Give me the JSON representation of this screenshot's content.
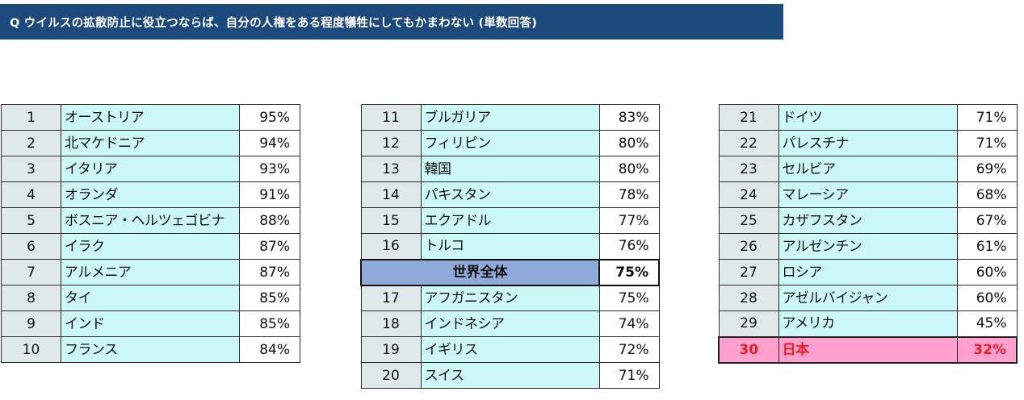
{
  "question": "Q  ウイルスの拡散防止に役立つならば、自分の人権をある程度犠牲にしてもかまわない (単数回答)",
  "colors": {
    "header_bg": "#1d4a7c",
    "rank_cell_bg": "#dfe9ea",
    "country_cell_bg": "#ccf8f8",
    "world_row_bg": "#8eaadb",
    "highlight_row_bg": "#ffa0cf",
    "highlight_text": "#ee1c25"
  },
  "chart_data": {
    "type": "table",
    "title": "Q  ウイルスの拡散防止に役立つならば、自分の人権をある程度犠牲にしてもかまわない (単数回答)",
    "rows": [
      {
        "rank": "1",
        "country": "オーストリア",
        "value": "95%"
      },
      {
        "rank": "2",
        "country": "北マケドニア",
        "value": "94%"
      },
      {
        "rank": "3",
        "country": "イタリア",
        "value": "93%"
      },
      {
        "rank": "4",
        "country": "オランダ",
        "value": "91%"
      },
      {
        "rank": "5",
        "country": "ボスニア・ヘルツェゴビナ",
        "value": "88%"
      },
      {
        "rank": "6",
        "country": "イラク",
        "value": "87%"
      },
      {
        "rank": "7",
        "country": "アルメニア",
        "value": "87%"
      },
      {
        "rank": "8",
        "country": "タイ",
        "value": "85%"
      },
      {
        "rank": "9",
        "country": "インド",
        "value": "85%"
      },
      {
        "rank": "10",
        "country": "フランス",
        "value": "84%"
      },
      {
        "rank": "11",
        "country": "ブルガリア",
        "value": "83%"
      },
      {
        "rank": "12",
        "country": "フィリピン",
        "value": "80%"
      },
      {
        "rank": "13",
        "country": "韓国",
        "value": "80%"
      },
      {
        "rank": "14",
        "country": "パキスタン",
        "value": "78%"
      },
      {
        "rank": "15",
        "country": "エクアドル",
        "value": "77%"
      },
      {
        "rank": "16",
        "country": "トルコ",
        "value": "76%"
      },
      {
        "rank": "",
        "country": "世界全体",
        "value": "75%",
        "world": true
      },
      {
        "rank": "17",
        "country": "アフガニスタン",
        "value": "75%"
      },
      {
        "rank": "18",
        "country": "インドネシア",
        "value": "74%"
      },
      {
        "rank": "19",
        "country": "イギリス",
        "value": "72%"
      },
      {
        "rank": "20",
        "country": "スイス",
        "value": "71%"
      },
      {
        "rank": "21",
        "country": "ドイツ",
        "value": "71%"
      },
      {
        "rank": "22",
        "country": "パレスチナ",
        "value": "71%"
      },
      {
        "rank": "23",
        "country": "セルビア",
        "value": "69%"
      },
      {
        "rank": "24",
        "country": "マレーシア",
        "value": "68%"
      },
      {
        "rank": "25",
        "country": "カザフスタン",
        "value": "67%"
      },
      {
        "rank": "26",
        "country": "アルゼンチン",
        "value": "61%"
      },
      {
        "rank": "27",
        "country": "ロシア",
        "value": "60%"
      },
      {
        "rank": "28",
        "country": "アゼルバイジャン",
        "value": "60%"
      },
      {
        "rank": "29",
        "country": "アメリカ",
        "value": "45%"
      },
      {
        "rank": "30",
        "country": "日本",
        "value": "32%",
        "highlight": true
      }
    ]
  }
}
